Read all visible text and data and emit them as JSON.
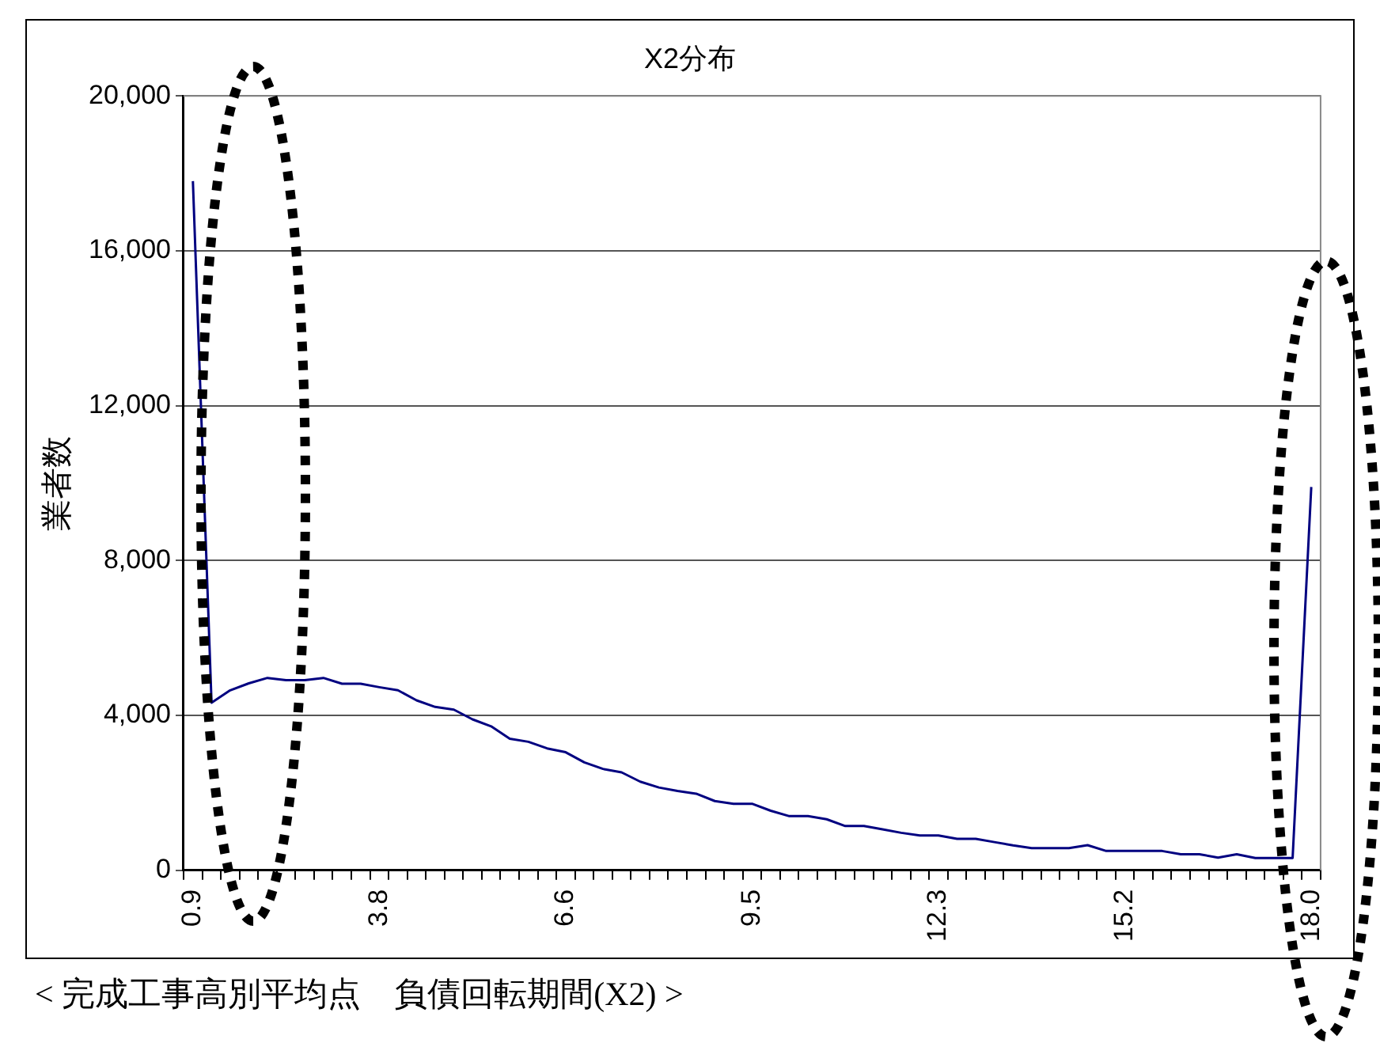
{
  "chart_data": {
    "type": "line",
    "title": "X2分布",
    "ylabel": "業者数",
    "annotations": [
      "< 完成工事高別平均点　負債回転期間(X2) >"
    ],
    "categories": [
      "0.9",
      null,
      null,
      null,
      null,
      null,
      null,
      null,
      null,
      null,
      "3.8",
      null,
      null,
      null,
      null,
      null,
      null,
      null,
      null,
      null,
      "6.6",
      null,
      null,
      null,
      null,
      null,
      null,
      null,
      null,
      null,
      "9.5",
      null,
      null,
      null,
      null,
      null,
      null,
      null,
      null,
      null,
      "12.3",
      null,
      null,
      null,
      null,
      null,
      null,
      null,
      null,
      null,
      "15.2",
      null,
      null,
      null,
      null,
      null,
      null,
      null,
      null,
      null,
      "18.0"
    ],
    "values": [
      17800,
      4330,
      4650,
      4830,
      4970,
      4910,
      4910,
      4970,
      4820,
      4820,
      4730,
      4650,
      4390,
      4220,
      4150,
      3900,
      3720,
      3400,
      3320,
      3150,
      3050,
      2790,
      2620,
      2530,
      2290,
      2140,
      2050,
      1980,
      1790,
      1720,
      1720,
      1540,
      1400,
      1400,
      1320,
      1145,
      1145,
      1060,
      970,
      900,
      900,
      815,
      815,
      730,
      645,
      575,
      575,
      575,
      650,
      500,
      500,
      500,
      500,
      415,
      415,
      330,
      415,
      320,
      320,
      320,
      9900
    ],
    "color": "#000080",
    "ylim": [
      0,
      20000
    ],
    "yticks": [
      0,
      {
        "value": 4000,
        "label": "4,000"
      },
      {
        "value": 8000,
        "label": "8,000"
      },
      {
        "value": 12000,
        "label": "12,000"
      },
      {
        "value": 16000,
        "label": "16,000"
      },
      {
        "value": 20000,
        "label": "20,000"
      }
    ],
    "grid": "y",
    "marker": "none",
    "line_style": "solid"
  }
}
